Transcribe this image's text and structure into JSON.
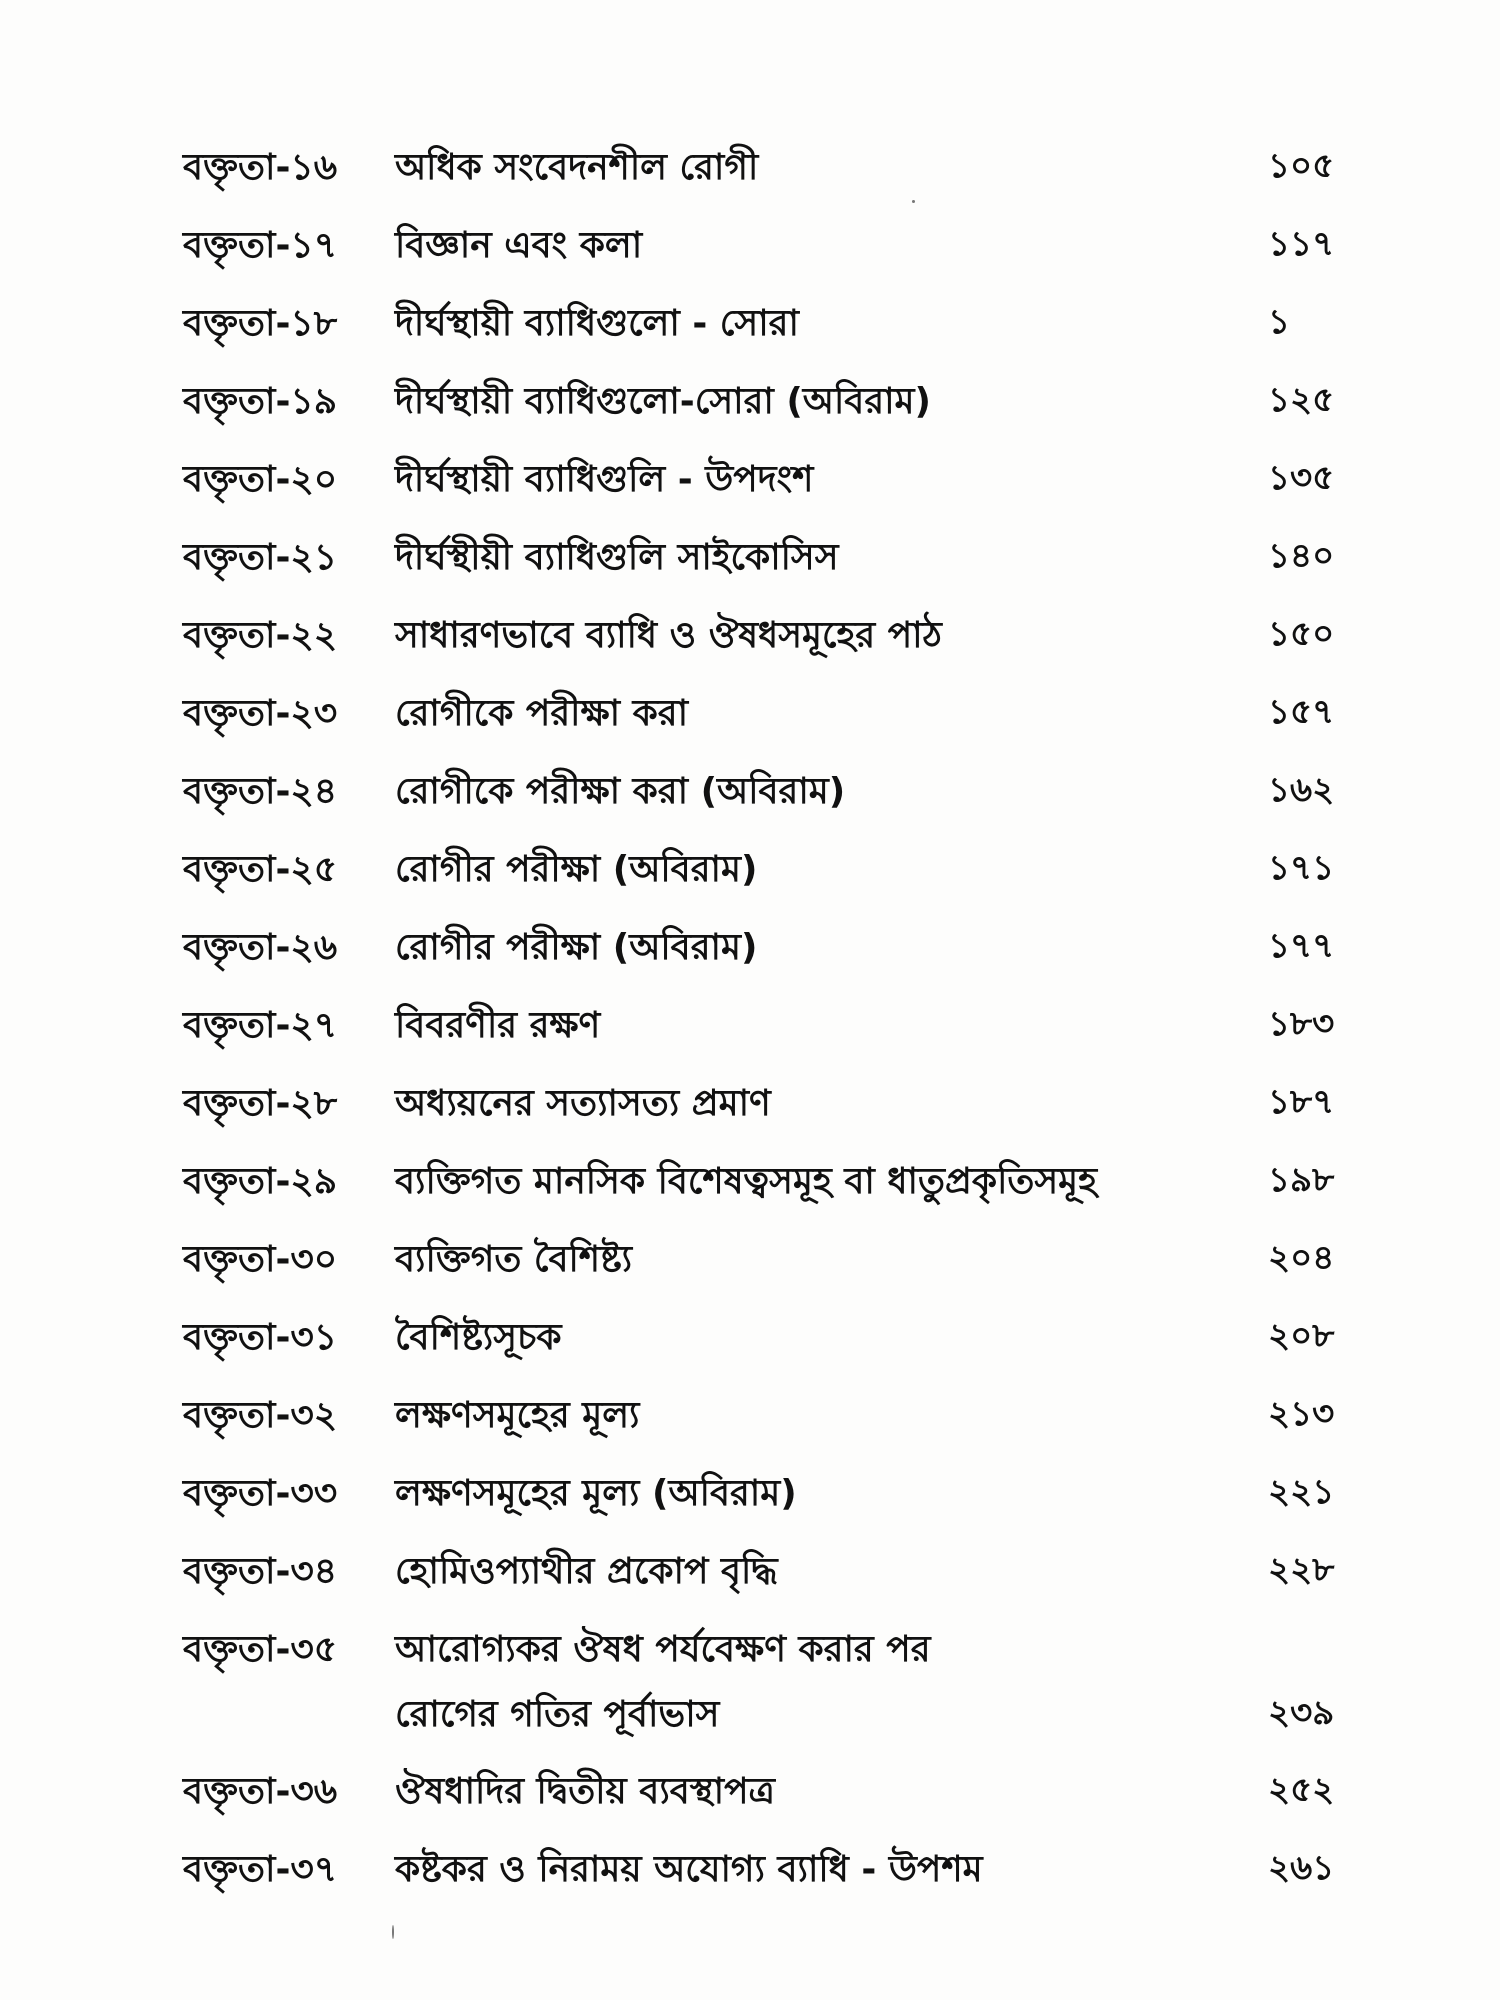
{
  "toc": {
    "entries": [
      {
        "label": "বক্তৃতা-১৬",
        "title": [
          "অধিক সংবেদনশীল রোগী"
        ],
        "page": "১০৫"
      },
      {
        "label": "বক্তৃতা-১৭",
        "title": [
          "বিজ্ঞান এবং কলা"
        ],
        "page": "১১৭"
      },
      {
        "label": "বক্তৃতা-১৮",
        "title": [
          "দীর্ঘস্থায়ী ব্যাধিগুলো - সোরা"
        ],
        "page": "১"
      },
      {
        "label": "বক্তৃতা-১৯",
        "title": [
          "দীর্ঘস্থায়ী ব্যাধিগুলো-সোরা (অবিরাম)"
        ],
        "page": "১২৫"
      },
      {
        "label": "বক্তৃতা-২০",
        "title": [
          "দীর্ঘস্থায়ী ব্যাধিগুলি - উপদংশ"
        ],
        "page": "১৩৫"
      },
      {
        "label": "বক্তৃতা-২১",
        "title": [
          "দীর্ঘস্থীয়ী ব্যাধিগুলি সাইকোসিস"
        ],
        "page": "১৪০"
      },
      {
        "label": "বক্তৃতা-২২",
        "title": [
          "সাধারণভাবে ব্যাধি ও ঔষধসমূহের পাঠ"
        ],
        "page": "১৫০"
      },
      {
        "label": "বক্তৃতা-২৩",
        "title": [
          "রোগীকে পরীক্ষা করা"
        ],
        "page": "১৫৭"
      },
      {
        "label": "বক্তৃতা-২৪",
        "title": [
          "রোগীকে পরীক্ষা করা (অবিরাম)"
        ],
        "page": "১৬২"
      },
      {
        "label": "বক্তৃতা-২৫",
        "title": [
          "রোগীর পরীক্ষা (অবিরাম)"
        ],
        "page": "১৭১"
      },
      {
        "label": "বক্তৃতা-২৬",
        "title": [
          "রোগীর পরীক্ষা (অবিরাম)"
        ],
        "page": "১৭৭"
      },
      {
        "label": "বক্তৃতা-২৭",
        "title": [
          "বিবরণীর রক্ষণ"
        ],
        "page": "১৮৩"
      },
      {
        "label": "বক্তৃতা-২৮",
        "title": [
          "অধ্যয়নের সত্যাসত্য প্রমাণ"
        ],
        "page": "১৮৭"
      },
      {
        "label": "বক্তৃতা-২৯",
        "title": [
          "ব্যক্তিগত মানসিক বিশেষত্বসমূহ বা ধাতুপ্রকৃতিসমূহ"
        ],
        "page": "১৯৮"
      },
      {
        "label": "বক্তৃতা-৩০",
        "title": [
          "ব্যক্তিগত বৈশিষ্ট্য"
        ],
        "page": "২০৪"
      },
      {
        "label": "বক্তৃতা-৩১",
        "title": [
          "বৈশিষ্ট্যসূচক"
        ],
        "page": "২০৮"
      },
      {
        "label": "বক্তৃতা-৩২",
        "title": [
          "লক্ষণসমূহের মূল্য"
        ],
        "page": "২১৩"
      },
      {
        "label": "বক্তৃতা-৩৩",
        "title": [
          "লক্ষণসমূহের মূল্য (অবিরাম)"
        ],
        "page": "২২১"
      },
      {
        "label": "বক্তৃতা-৩৪",
        "title": [
          "হোমিওপ্যাথীর প্রকোপ বৃদ্ধি"
        ],
        "page": "২২৮"
      },
      {
        "label": "বক্তৃতা-৩৫",
        "title": [
          "আরোগ্যকর ঔষধ পর্যবেক্ষণ করার পর",
          "রোগের গতির পূর্বাভাস"
        ],
        "page": "২৩৯"
      },
      {
        "label": "বক্তৃতা-৩৬",
        "title": [
          "ঔষধাদির দ্বিতীয় ব্যবস্থাপত্র"
        ],
        "page": "২৫২"
      },
      {
        "label": "বক্তৃতা-৩৭",
        "title": [
          "কষ্টকর ও নিরাময় অযোগ্য ব্যাধি - উপশম"
        ],
        "page": "২৬১"
      }
    ]
  }
}
